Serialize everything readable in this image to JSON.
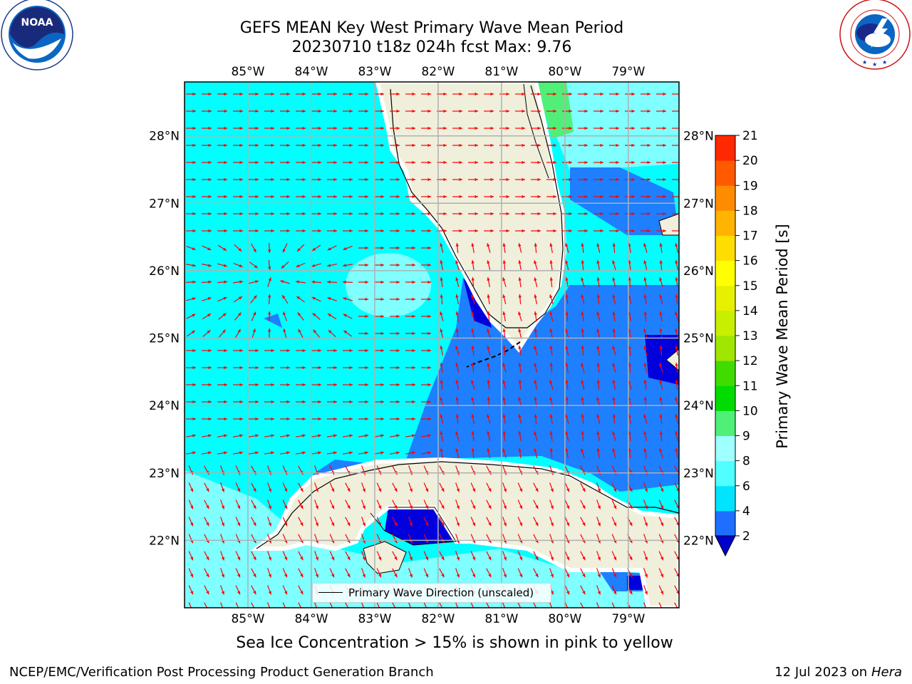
{
  "title_line1": "GEFS MEAN Key West Primary Wave Mean Period",
  "title_line2": "20230710 t18z 024h fcst   Max: 9.76",
  "caption": "Sea Ice Concentration > 15% is shown in pink to yellow",
  "footer_left": "NCEP/EMC/Verification Post Processing Product Generation Branch",
  "footer_date": "12 Jul 2023 on",
  "footer_machine": "Hera",
  "legend_label": "Primary Wave Direction (unscaled)",
  "logos": {
    "noaa_text": "NOAA",
    "noaa_ring": "NATIONAL OCEANIC AND ATMOSPHERIC ADMINISTRATION · U.S. DEPARTMENT OF COMMERCE",
    "nws_ring": "NATIONAL WEATHER SERVICE"
  },
  "map": {
    "lon_labels": [
      "85°W",
      "84°W",
      "83°W",
      "82°W",
      "81°W",
      "80°W",
      "79°W"
    ],
    "lat_labels": [
      "28°N",
      "27°N",
      "26°N",
      "25°N",
      "24°N",
      "23°N",
      "22°N"
    ],
    "lon_values": [
      -85,
      -84,
      -83,
      -82,
      -81,
      -80,
      -79
    ],
    "lat_values": [
      28,
      27,
      26,
      25,
      24,
      23,
      22
    ],
    "lon_range": [
      -86.0,
      -78.2
    ],
    "lat_range": [
      21.0,
      28.8
    ],
    "colors": {
      "land": "#efefdc",
      "water_6": "#00ffff",
      "water_8": "#7fffff",
      "water_4": "#1e7fff",
      "water_2": "#0000dd",
      "green_9": "#50ef78",
      "arrows": "#ff0000",
      "grid": "#b0b0b0"
    }
  },
  "colorbar": {
    "label": "Primary Wave Mean Period [s]",
    "ticks": [
      "2",
      "4",
      "6",
      "8",
      "9",
      "10",
      "11",
      "12",
      "13",
      "14",
      "15",
      "16",
      "17",
      "18",
      "19",
      "20",
      "21"
    ],
    "colors": [
      "#1e6fff",
      "#00e4ff",
      "#50ffff",
      "#a0ffff",
      "#50ef78",
      "#00dc00",
      "#40dc00",
      "#a0e600",
      "#c8ee00",
      "#e6f000",
      "#ffff00",
      "#ffdd00",
      "#ffb400",
      "#ff8c00",
      "#ff5a00",
      "#ff2800"
    ],
    "under_color": "#0000cc"
  }
}
